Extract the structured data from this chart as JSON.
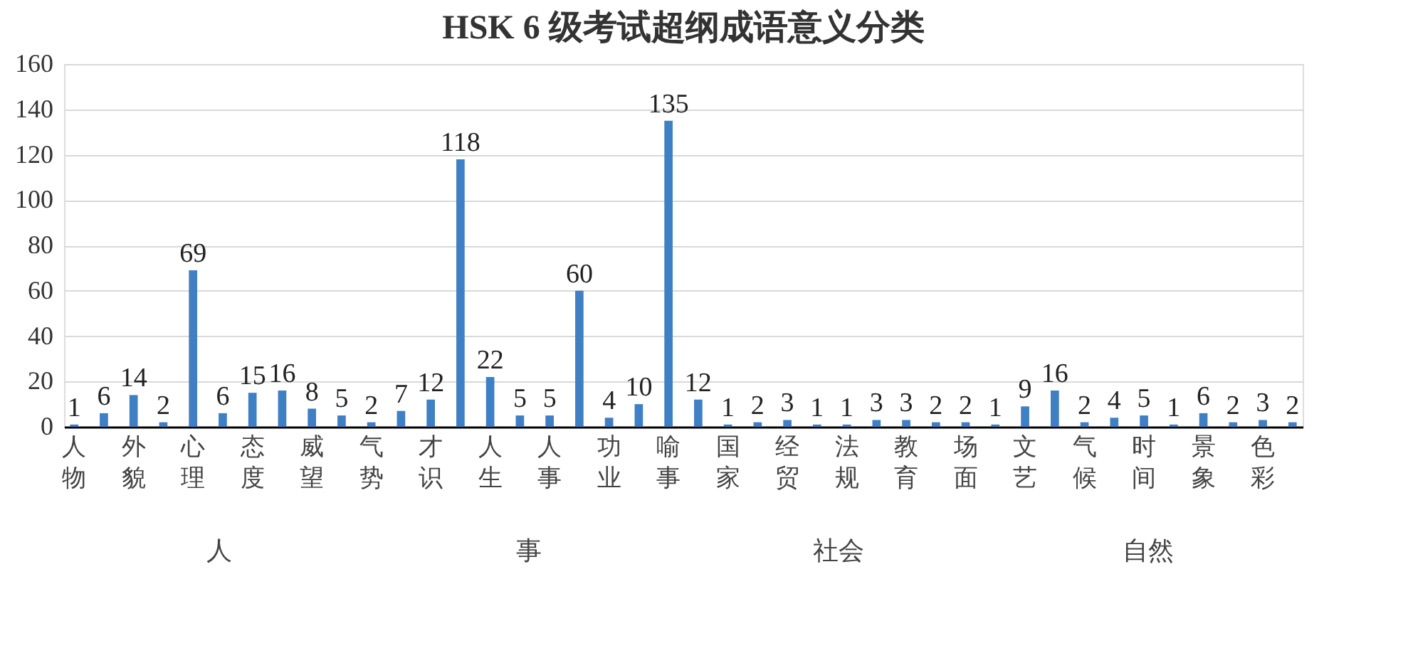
{
  "chart_data": {
    "type": "bar",
    "title": "HSK 6 级考试超纲成语意义分类",
    "categories": [
      "人物",
      null,
      "外貌",
      null,
      "心理",
      null,
      "态度",
      null,
      "威望",
      null,
      "气势",
      null,
      "才识",
      null,
      "人生",
      null,
      "人事",
      null,
      "功业",
      null,
      "喻事",
      null,
      "国家",
      null,
      "经贸",
      null,
      "法规",
      null,
      "教育",
      null,
      "场面",
      null,
      "文艺",
      null,
      "气候",
      null,
      "时间",
      null,
      "景象",
      null,
      "色彩",
      null
    ],
    "values": [
      1,
      6,
      14,
      2,
      69,
      6,
      15,
      16,
      8,
      5,
      2,
      7,
      12,
      118,
      22,
      5,
      5,
      60,
      4,
      10,
      135,
      12,
      1,
      2,
      3,
      1,
      1,
      3,
      3,
      2,
      2,
      1,
      9,
      16,
      2,
      4,
      5,
      1,
      6,
      2,
      3,
      2
    ],
    "color": "#3f7fc4",
    "ylim": [
      0,
      160
    ],
    "yticks": [
      0,
      20,
      40,
      60,
      80,
      100,
      120,
      140,
      160
    ],
    "grid": "y",
    "data_labels": true,
    "annotations": [
      "人",
      "事",
      "社会",
      "自然"
    ]
  }
}
